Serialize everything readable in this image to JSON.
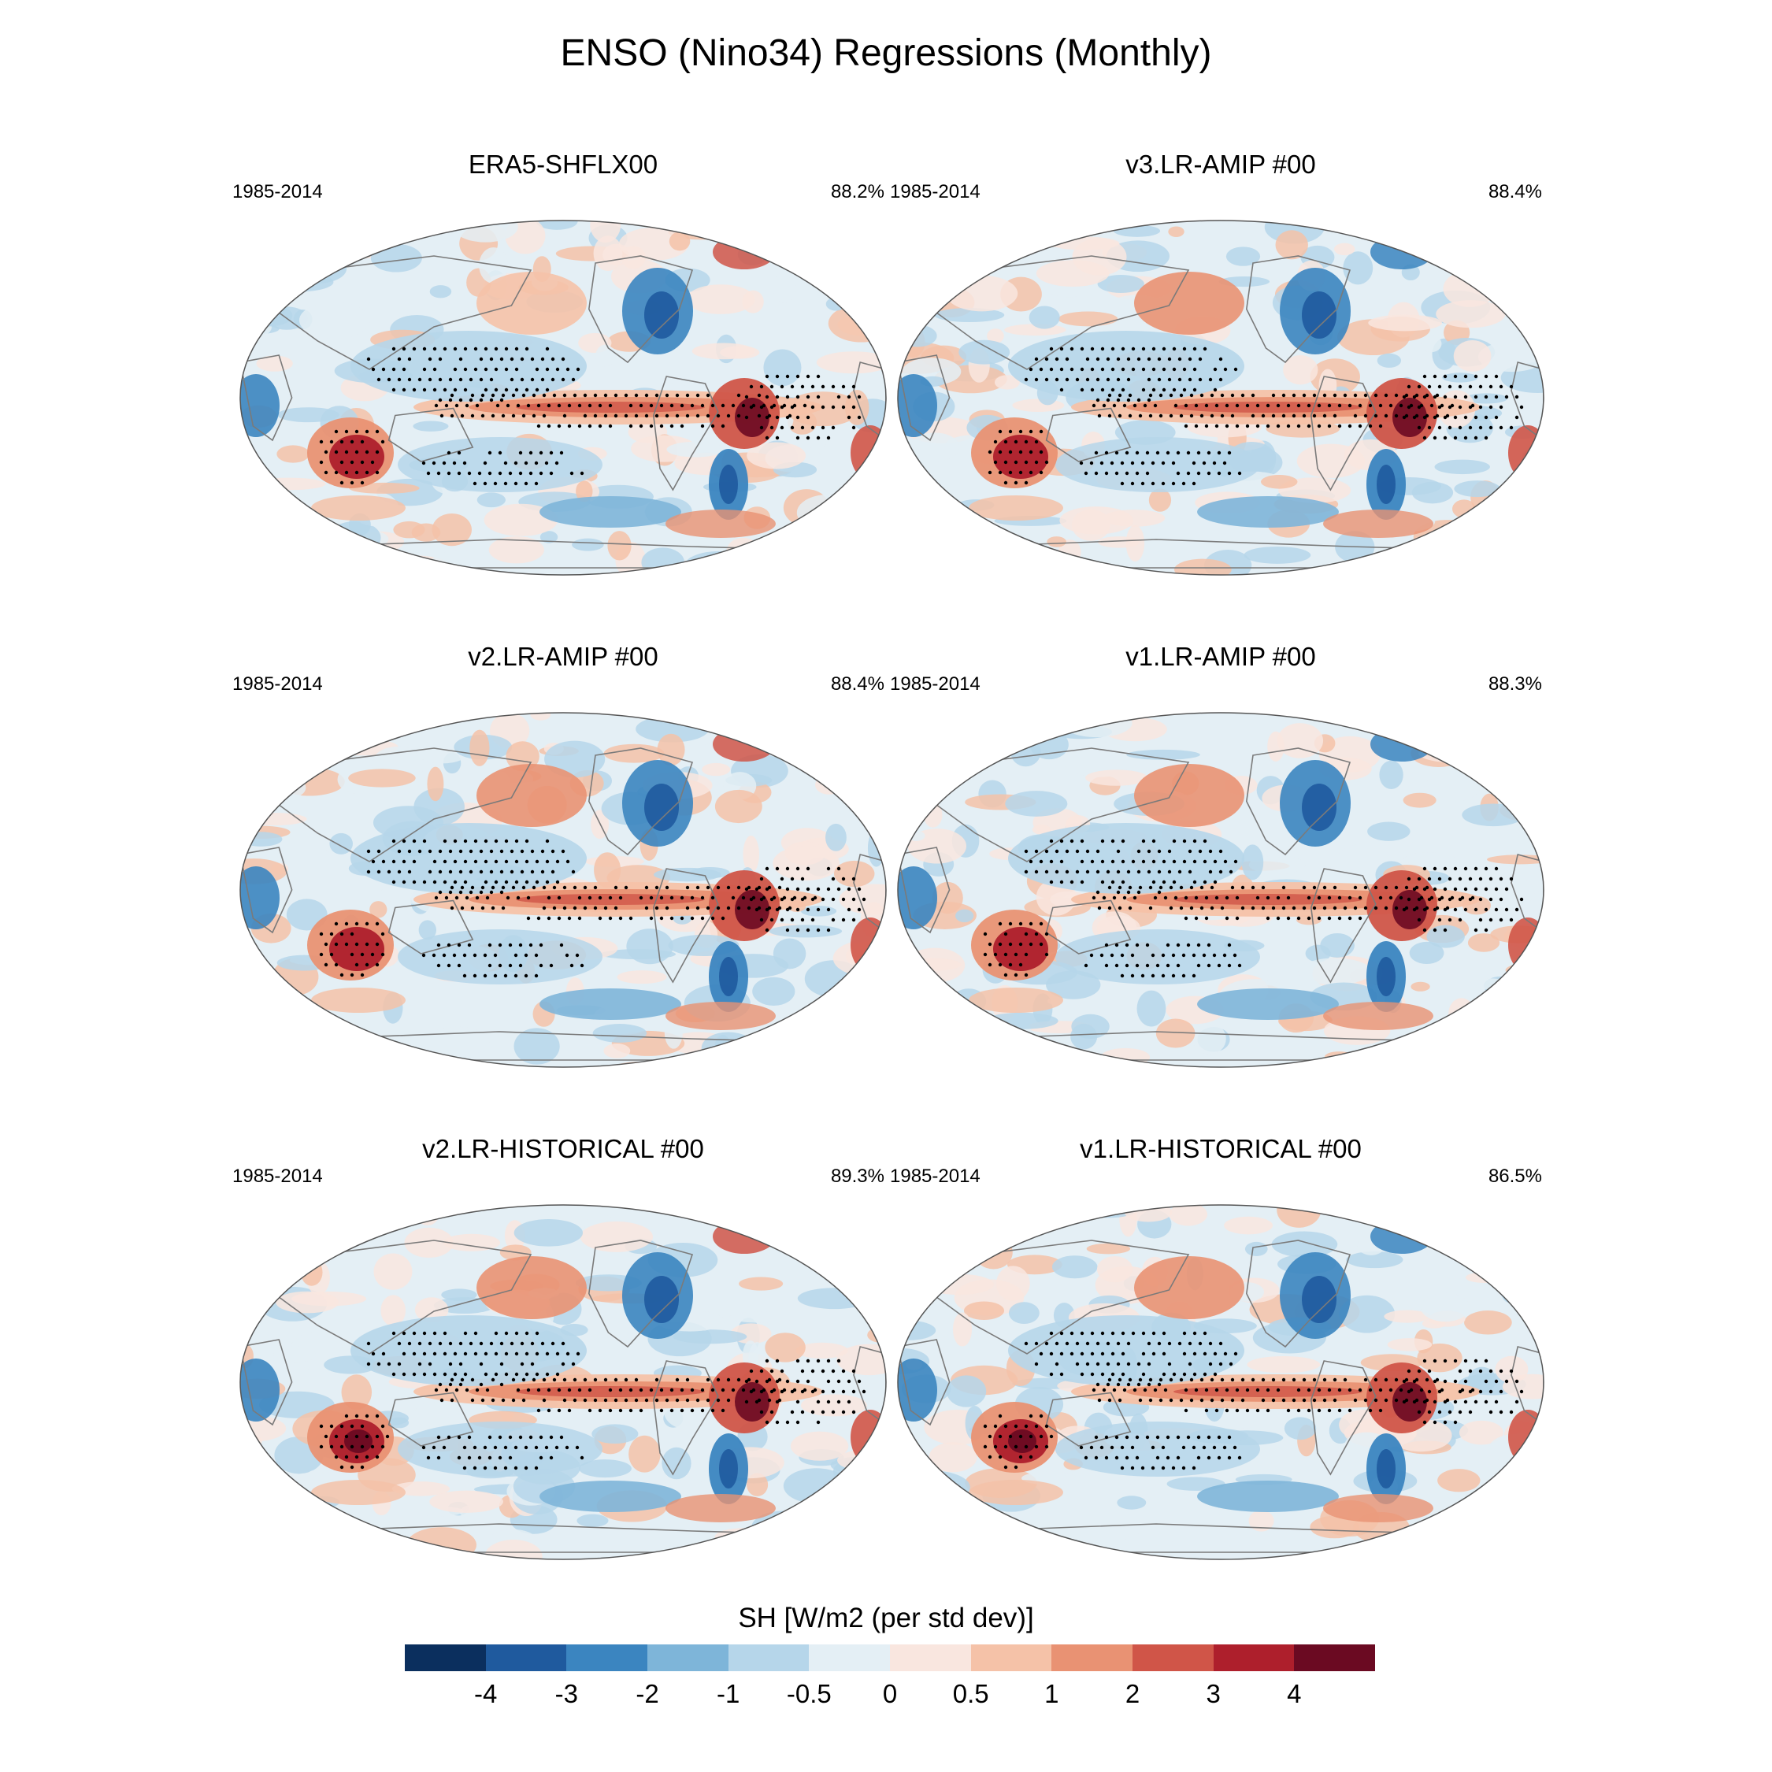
{
  "title": "ENSO (Nino34) Regressions (Monthly)",
  "panels": [
    {
      "title": "ERA5-SHFLX00",
      "period": "1985-2014",
      "pct": "88.2%"
    },
    {
      "title": "v3.LR-AMIP  #00",
      "period": "1985-2014",
      "pct": "88.4%"
    },
    {
      "title": "v2.LR-AMIP  #00",
      "period": "1985-2014",
      "pct": "88.4%"
    },
    {
      "title": "v1.LR-AMIP  #00",
      "period": "1985-2014",
      "pct": "88.3%"
    },
    {
      "title": "v2.LR-HISTORICAL  #00",
      "period": "1985-2014",
      "pct": "89.3%"
    },
    {
      "title": "v1.LR-HISTORICAL  #00",
      "period": "1985-2014",
      "pct": "86.5%"
    }
  ],
  "colorbar": {
    "label": "SH [W/m2 (per std dev)]",
    "ticks": [
      "-4",
      "-3",
      "-2",
      "-1",
      "-0.5",
      "0",
      "0.5",
      "1",
      "2",
      "3",
      "4"
    ],
    "colors": [
      "#0b2f5e",
      "#1f5a9e",
      "#3b85c0",
      "#7eb5d9",
      "#b6d6ea",
      "#e4eff5",
      "#f9e6df",
      "#f5c2a8",
      "#e99273",
      "#d05548",
      "#ae1f2c",
      "#6b0a22"
    ]
  },
  "chart_data": {
    "type": "map-grid",
    "title": "ENSO (Nino34) Regressions (Monthly)",
    "variable": "SH [W/m2 (per std dev)]",
    "levels": [
      -4,
      -3,
      -2,
      -1,
      -0.5,
      0,
      0.5,
      1,
      2,
      3,
      4
    ],
    "panels": [
      {
        "name": "ERA5-SHFLX00",
        "period": "1985-2014",
        "pattern_corr": "88.2%"
      },
      {
        "name": "v3.LR-AMIP  #00",
        "period": "1985-2014",
        "pattern_corr": "88.4%"
      },
      {
        "name": "v2.LR-AMIP  #00",
        "period": "1985-2014",
        "pattern_corr": "88.4%"
      },
      {
        "name": "v1.LR-AMIP  #00",
        "period": "1985-2014",
        "pattern_corr": "88.3%"
      },
      {
        "name": "v2.LR-HISTORICAL  #00",
        "period": "1985-2014",
        "pattern_corr": "89.3%"
      },
      {
        "name": "v1.LR-HISTORICAL  #00",
        "period": "1985-2014",
        "pattern_corr": "86.5%"
      }
    ]
  }
}
